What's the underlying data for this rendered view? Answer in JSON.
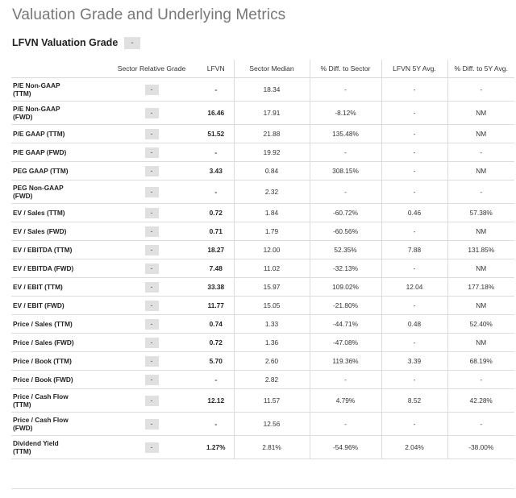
{
  "page": {
    "title": "Valuation Grade and Underlying Metrics"
  },
  "grade": {
    "title": "LFVN Valuation Grade",
    "badge": "-"
  },
  "table": {
    "headers": [
      "",
      "Sector Relative Grade",
      "LFVN",
      "Sector Median",
      "% Diff. to Sector",
      "LFVN 5Y Avg.",
      "% Diff. to 5Y Avg."
    ],
    "rows": [
      {
        "metric": [
          "P/E Non-GAAP",
          "(TTM)"
        ],
        "grade": "-",
        "lfvn": "-",
        "sector_median": "18.34",
        "diff_sector": "-",
        "avg5y": "-",
        "diff_5y": "-"
      },
      {
        "metric": [
          "P/E Non-GAAP",
          "(FWD)"
        ],
        "grade": "-",
        "lfvn": "16.46",
        "sector_median": "17.91",
        "diff_sector": "-8.12%",
        "avg5y": "-",
        "diff_5y": "NM"
      },
      {
        "metric": [
          "P/E GAAP (TTM)"
        ],
        "grade": "-",
        "lfvn": "51.52",
        "sector_median": "21.88",
        "diff_sector": "135.48%",
        "avg5y": "-",
        "diff_5y": "NM"
      },
      {
        "metric": [
          "P/E GAAP (FWD)"
        ],
        "grade": "-",
        "lfvn": "-",
        "sector_median": "19.92",
        "diff_sector": "-",
        "avg5y": "-",
        "diff_5y": "-"
      },
      {
        "metric": [
          "PEG GAAP (TTM)"
        ],
        "grade": "-",
        "lfvn": "3.43",
        "sector_median": "0.84",
        "diff_sector": "308.15%",
        "avg5y": "-",
        "diff_5y": "NM"
      },
      {
        "metric": [
          "PEG Non-GAAP",
          "(FWD)"
        ],
        "grade": "-",
        "lfvn": "-",
        "sector_median": "2.32",
        "diff_sector": "-",
        "avg5y": "-",
        "diff_5y": "-"
      },
      {
        "metric": [
          "EV / Sales (TTM)"
        ],
        "grade": "-",
        "lfvn": "0.72",
        "sector_median": "1.84",
        "diff_sector": "-60.72%",
        "avg5y": "0.46",
        "diff_5y": "57.38%"
      },
      {
        "metric": [
          "EV / Sales (FWD)"
        ],
        "grade": "-",
        "lfvn": "0.71",
        "sector_median": "1.79",
        "diff_sector": "-60.56%",
        "avg5y": "-",
        "diff_5y": "NM"
      },
      {
        "metric": [
          "EV / EBITDA (TTM)"
        ],
        "grade": "-",
        "lfvn": "18.27",
        "sector_median": "12.00",
        "diff_sector": "52.35%",
        "avg5y": "7.88",
        "diff_5y": "131.85%"
      },
      {
        "metric": [
          "EV / EBITDA (FWD)"
        ],
        "grade": "-",
        "lfvn": "7.48",
        "sector_median": "11.02",
        "diff_sector": "-32.13%",
        "avg5y": "-",
        "diff_5y": "NM"
      },
      {
        "metric": [
          "EV / EBIT (TTM)"
        ],
        "grade": "-",
        "lfvn": "33.38",
        "sector_median": "15.97",
        "diff_sector": "109.02%",
        "avg5y": "12.04",
        "diff_5y": "177.18%"
      },
      {
        "metric": [
          "EV / EBIT (FWD)"
        ],
        "grade": "-",
        "lfvn": "11.77",
        "sector_median": "15.05",
        "diff_sector": "-21.80%",
        "avg5y": "-",
        "diff_5y": "NM"
      },
      {
        "metric": [
          "Price / Sales (TTM)"
        ],
        "grade": "-",
        "lfvn": "0.74",
        "sector_median": "1.33",
        "diff_sector": "-44.71%",
        "avg5y": "0.48",
        "diff_5y": "52.40%"
      },
      {
        "metric": [
          "Price / Sales (FWD)"
        ],
        "grade": "-",
        "lfvn": "0.72",
        "sector_median": "1.36",
        "diff_sector": "-47.08%",
        "avg5y": "-",
        "diff_5y": "NM"
      },
      {
        "metric": [
          "Price / Book (TTM)"
        ],
        "grade": "-",
        "lfvn": "5.70",
        "sector_median": "2.60",
        "diff_sector": "119.36%",
        "avg5y": "3.39",
        "diff_5y": "68.19%"
      },
      {
        "metric": [
          "Price / Book (FWD)"
        ],
        "grade": "-",
        "lfvn": "-",
        "sector_median": "2.82",
        "diff_sector": "-",
        "avg5y": "-",
        "diff_5y": "-"
      },
      {
        "metric": [
          "Price / Cash Flow",
          "(TTM)"
        ],
        "grade": "-",
        "lfvn": "12.12",
        "sector_median": "11.57",
        "diff_sector": "4.79%",
        "avg5y": "8.52",
        "diff_5y": "42.28%"
      },
      {
        "metric": [
          "Price / Cash Flow",
          "(FWD)"
        ],
        "grade": "-",
        "lfvn": "-",
        "sector_median": "12.56",
        "diff_sector": "-",
        "avg5y": "-",
        "diff_5y": "-"
      },
      {
        "metric": [
          "Dividend Yield",
          "(TTM)"
        ],
        "grade": "-",
        "lfvn": "1.27%",
        "sector_median": "2.81%",
        "diff_sector": "-54.96%",
        "avg5y": "2.04%",
        "diff_5y": "-38.00%"
      }
    ]
  }
}
